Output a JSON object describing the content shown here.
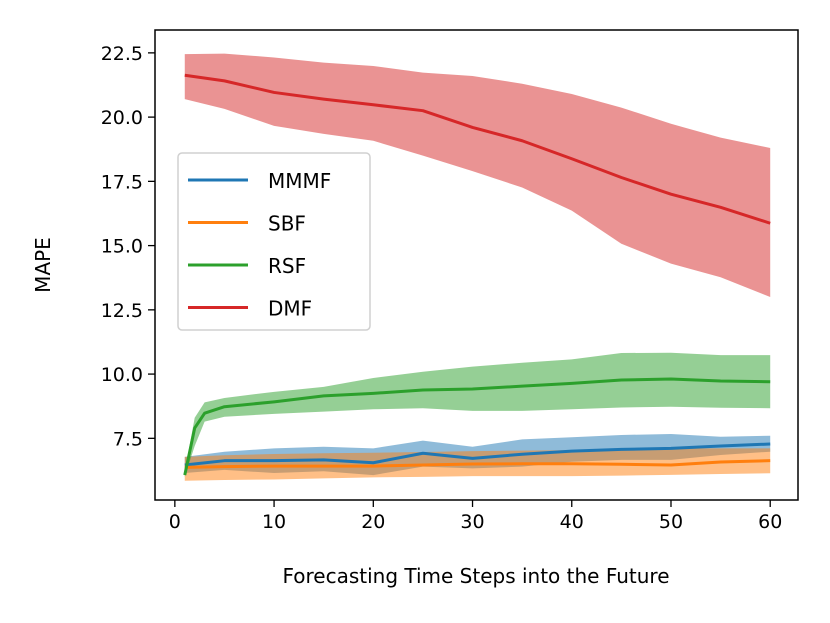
{
  "chart_data": {
    "type": "line",
    "title": "",
    "xlabel": "Forecasting Time Steps into the Future",
    "ylabel": "MAPE",
    "xlim": [
      -2.0,
      62.8
    ],
    "ylim": [
      5.1,
      23.39
    ],
    "xticks": [
      0,
      10,
      20,
      30,
      40,
      50,
      60
    ],
    "yticks": [
      7.5,
      10.0,
      12.5,
      15.0,
      17.5,
      20.0,
      22.5
    ],
    "xtick_labels": [
      "0",
      "10",
      "20",
      "30",
      "40",
      "50",
      "60"
    ],
    "ytick_labels": [
      "7.5",
      "10.0",
      "12.5",
      "15.0",
      "17.5",
      "20.0",
      "22.5"
    ],
    "grid": false,
    "legend_position": "center-left",
    "x": [
      1,
      5,
      10,
      15,
      20,
      25,
      30,
      35,
      40,
      45,
      50,
      55,
      60
    ],
    "series": [
      {
        "name": "MMMF",
        "color": "#1f77b4",
        "values": [
          6.46,
          6.63,
          6.63,
          6.66,
          6.55,
          6.92,
          6.72,
          6.88,
          7.0,
          7.07,
          7.11,
          7.2,
          7.28
        ],
        "upper": [
          6.78,
          6.98,
          7.11,
          7.17,
          7.11,
          7.41,
          7.17,
          7.46,
          7.54,
          7.63,
          7.67,
          7.56,
          7.6
        ],
        "lower": [
          6.15,
          6.27,
          6.15,
          6.22,
          6.07,
          6.4,
          6.33,
          6.4,
          6.59,
          6.66,
          6.66,
          6.85,
          6.98
        ]
      },
      {
        "name": "SBF",
        "color": "#ff7f0e",
        "values": [
          6.37,
          6.4,
          6.42,
          6.42,
          6.42,
          6.46,
          6.5,
          6.51,
          6.51,
          6.49,
          6.46,
          6.58,
          6.63
        ],
        "upper": [
          6.78,
          6.84,
          6.89,
          6.92,
          6.94,
          6.97,
          7.0,
          7.02,
          7.04,
          7.08,
          7.11,
          7.11,
          7.11
        ],
        "lower": [
          5.85,
          5.88,
          5.9,
          5.94,
          5.98,
          6.0,
          6.03,
          6.03,
          6.03,
          6.05,
          6.08,
          6.11,
          6.14
        ]
      },
      {
        "name": "RSF",
        "color": "#2ca02c",
        "x": [
          1,
          2,
          3,
          5,
          10,
          15,
          20,
          25,
          30,
          35,
          40,
          45,
          50,
          55,
          60
        ],
        "values": [
          6.07,
          7.9,
          8.48,
          8.73,
          8.92,
          9.15,
          9.25,
          9.38,
          9.42,
          9.53,
          9.64,
          9.77,
          9.81,
          9.73,
          9.7
        ],
        "upper": [
          6.2,
          8.3,
          8.9,
          9.07,
          9.31,
          9.5,
          9.85,
          10.09,
          10.29,
          10.44,
          10.57,
          10.82,
          10.83,
          10.74,
          10.74
        ],
        "lower": [
          6.0,
          7.2,
          8.15,
          8.34,
          8.45,
          8.54,
          8.63,
          8.67,
          8.57,
          8.57,
          8.63,
          8.7,
          8.73,
          8.69,
          8.67
        ]
      },
      {
        "name": "DMF",
        "color": "#d62728",
        "values": [
          21.63,
          21.41,
          20.96,
          20.7,
          20.48,
          20.25,
          19.6,
          19.08,
          18.38,
          17.65,
          17.0,
          16.49,
          15.87
        ],
        "upper": [
          22.45,
          22.47,
          22.32,
          22.12,
          21.99,
          21.73,
          21.6,
          21.3,
          20.9,
          20.37,
          19.74,
          19.2,
          18.8
        ],
        "lower": [
          20.7,
          20.32,
          19.66,
          19.35,
          19.08,
          18.5,
          17.9,
          17.26,
          16.36,
          15.07,
          14.3,
          13.77,
          13.0
        ]
      }
    ]
  }
}
